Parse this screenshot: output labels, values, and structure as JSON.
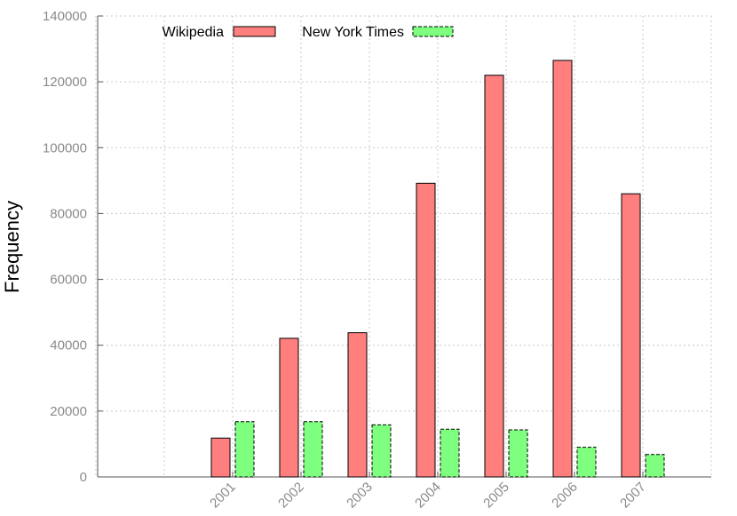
{
  "chart_data": {
    "type": "bar",
    "title": "",
    "xlabel": "",
    "ylabel": "Frequency",
    "categories": [
      "2001",
      "2002",
      "2003",
      "2004",
      "2005",
      "2006",
      "2007"
    ],
    "series": [
      {
        "name": "Wikipedia",
        "color": "#ff7f7f",
        "values": [
          11800,
          42100,
          43800,
          89200,
          122000,
          126500,
          86000
        ]
      },
      {
        "name": "New York Times",
        "color": "#7fff7f",
        "values": [
          16800,
          16800,
          15800,
          14500,
          14300,
          9000,
          6800
        ]
      }
    ],
    "yticks": [
      "0",
      "20000",
      "40000",
      "60000",
      "80000",
      "100000",
      "120000",
      "140000"
    ],
    "ylim": [
      0,
      140000
    ],
    "grid": true,
    "legend_position": "top-left"
  }
}
